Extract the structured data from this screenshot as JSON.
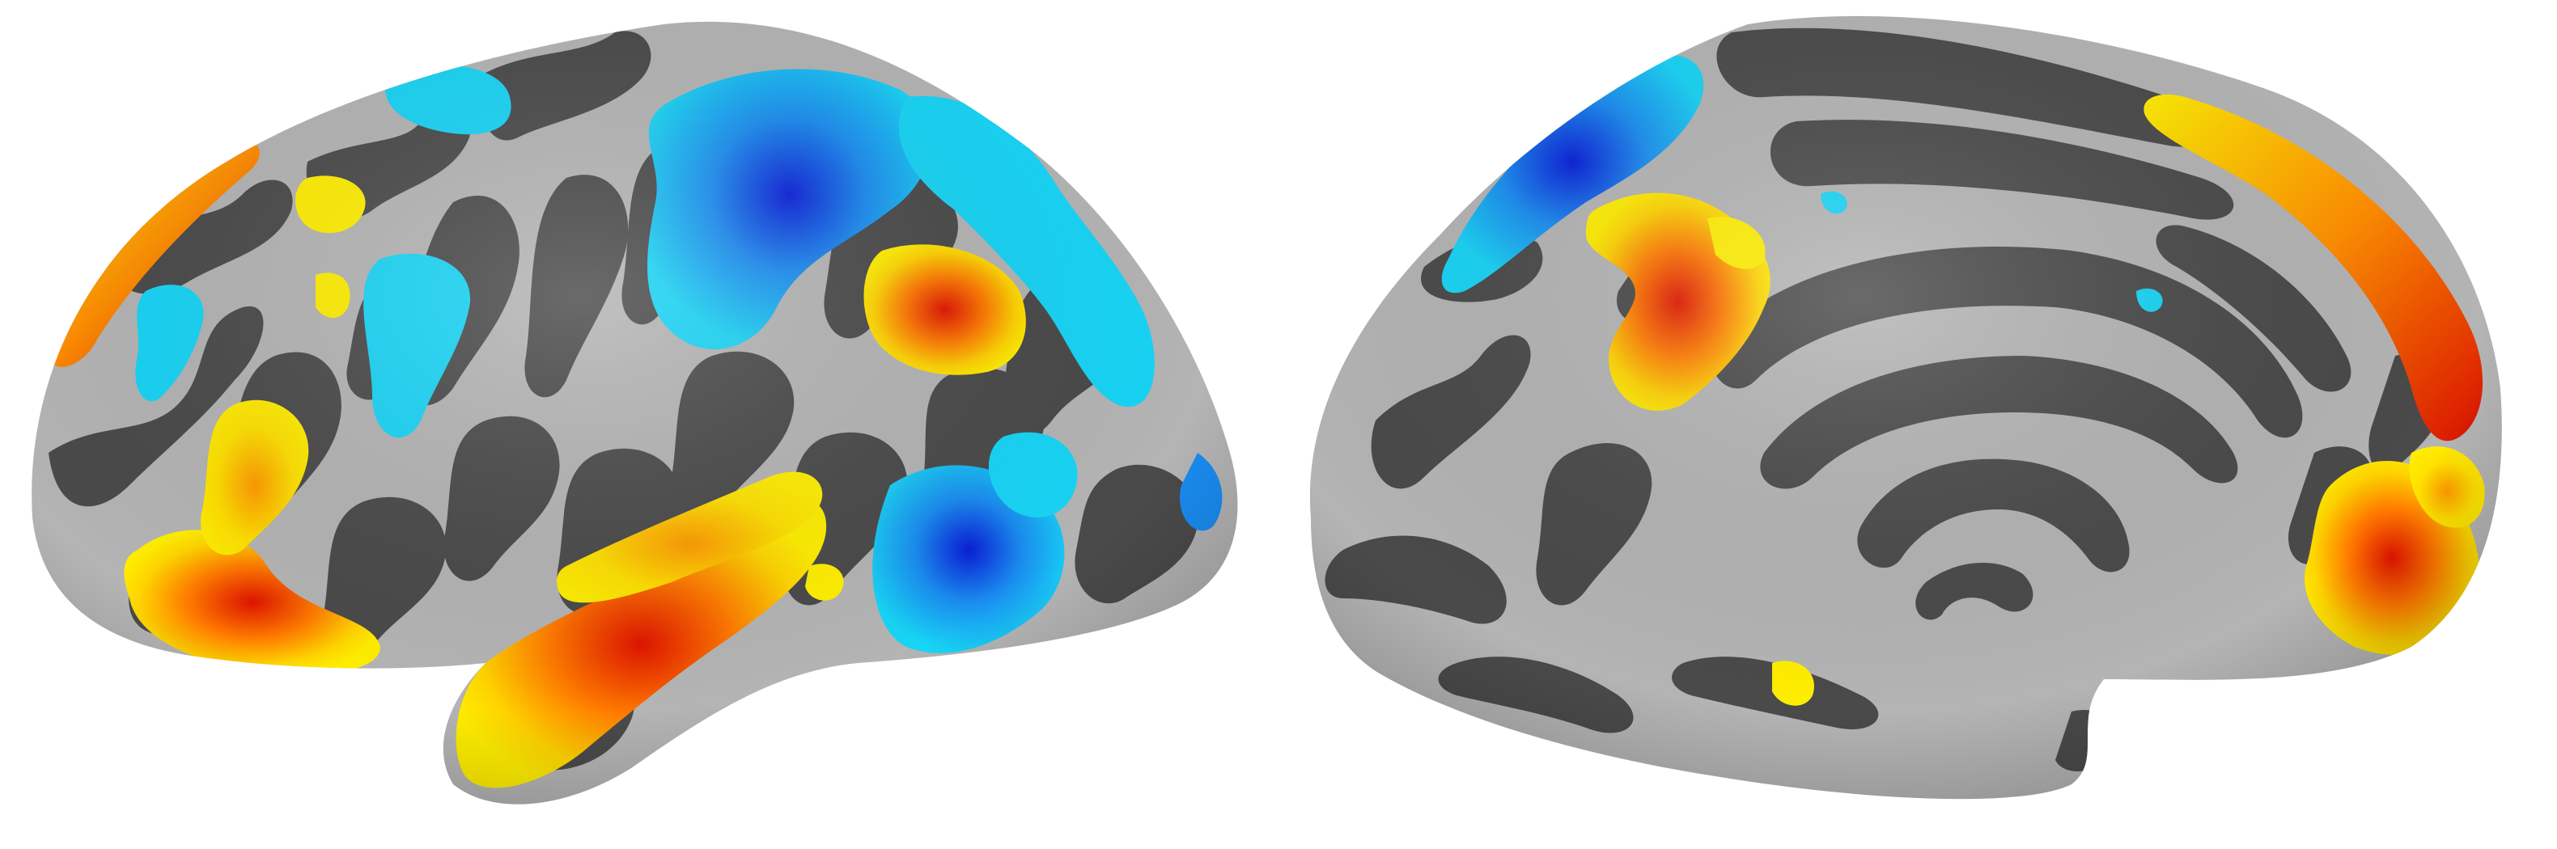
{
  "figure": {
    "description_tag": "brain-surface-activation-map",
    "background": "#ffffff",
    "colors": {
      "surface_light": "#b4b4b4",
      "surface_dark": "#4a4a4a",
      "positive_low": "#ffee00",
      "positive_mid": "#ff8c00",
      "positive_high": "#e01400",
      "negative_low": "#18d4f5",
      "negative_mid": "#1a8cf0",
      "negative_high": "#0a1ed8"
    },
    "views": [
      {
        "name": "lateral-hemisphere"
      },
      {
        "name": "medial-hemisphere"
      }
    ]
  }
}
